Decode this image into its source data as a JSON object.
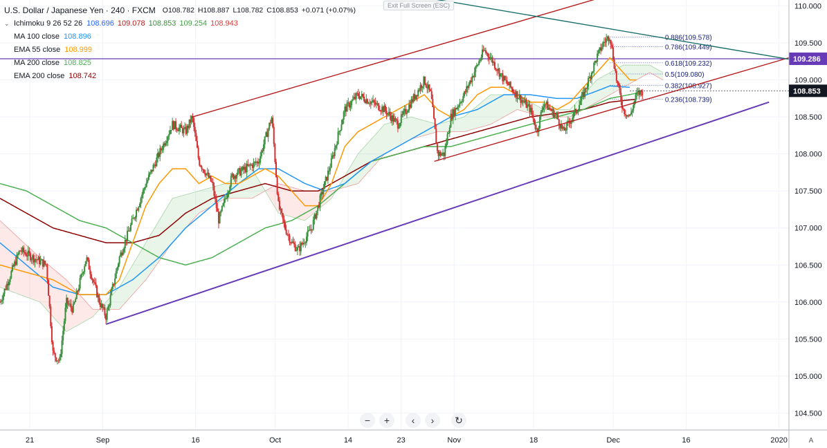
{
  "header": {
    "title": "U.S. Dollar / Japanese Yen · 240 · FXCM",
    "ohlc": {
      "open": "O108.782",
      "high": "H108.887",
      "low": "L108.782",
      "close": "C108.853",
      "change": "+0.071 (+0.07%)"
    },
    "exit_fullscreen": "Exit Full Screen (ESC)"
  },
  "indicators": [
    {
      "label": "Ichimoku 9 26 52 26",
      "values": [
        {
          "v": "108.696",
          "color": "#2962ff"
        },
        {
          "v": "109.078",
          "color": "#b71c1c"
        },
        {
          "v": "108.853",
          "color": "#388e3c"
        },
        {
          "v": "109.254",
          "color": "#43a047"
        },
        {
          "v": "108.943",
          "color": "#e53935"
        }
      ]
    },
    {
      "label": "MA 100 close",
      "values": [
        {
          "v": "108.896",
          "color": "#2196f3"
        }
      ]
    },
    {
      "label": "EMA 55 close",
      "values": [
        {
          "v": "108.999",
          "color": "#ff9800"
        }
      ]
    },
    {
      "label": "MA 200 close",
      "values": [
        {
          "v": "108.825",
          "color": "#4caf50"
        }
      ]
    },
    {
      "label": "EMA 200 close",
      "values": [
        {
          "v": "108.742",
          "color": "#8b0000"
        }
      ]
    }
  ],
  "toolbar": [
    "−",
    "+",
    "‹",
    "›",
    "↻"
  ],
  "scale_mode": "A",
  "chart_data": {
    "type": "candlestick",
    "symbol": "USDJPY",
    "timeframe": "240",
    "y_ticks": [
      "110.000",
      "109.500",
      "109.000",
      "108.500",
      "108.000",
      "107.500",
      "107.000",
      "106.500",
      "106.000",
      "105.500",
      "105.000",
      "104.500"
    ],
    "x_ticks": [
      {
        "label": "21",
        "t": 0.5
      },
      {
        "label": "Sep",
        "t": 11.5
      },
      {
        "label": "16",
        "t": 25.5
      },
      {
        "label": "Oct",
        "t": 37.5
      },
      {
        "label": "14",
        "t": 48.5
      },
      {
        "label": "23",
        "t": 56.5
      },
      {
        "label": "Nov",
        "t": 64.5
      },
      {
        "label": "18",
        "t": 76.5
      },
      {
        "label": "Dec",
        "t": 88.5
      },
      {
        "label": "16",
        "t": 99.5
      },
      {
        "label": "2020",
        "t": 113.5
      }
    ],
    "y_range": [
      104.27,
      110.08
    ],
    "x_range": [
      -4,
      115
    ],
    "grid": true,
    "last_price": {
      "value": 108.853,
      "label": "108.853",
      "color": "#131722"
    },
    "horizontal_line": {
      "value": 109.286,
      "label": "109.286",
      "color": "#673ab7"
    },
    "fibonacci": [
      {
        "label": "0.886(109.578)",
        "value": 109.578
      },
      {
        "label": "0.786(109.449)",
        "value": 109.449
      },
      {
        "label": "0.618(109.232)",
        "value": 109.232
      },
      {
        "label": "0.5(109.080)",
        "value": 109.08
      },
      {
        "label": "0.382(108.927)",
        "value": 108.927
      },
      {
        "label": "0.236(108.739)",
        "value": 108.739
      }
    ],
    "trendlines": [
      {
        "name": "channel-upper",
        "color": "#b71c1c",
        "from": [
          25,
          108.5
        ],
        "to": [
          90,
          110.2
        ]
      },
      {
        "name": "channel-lower",
        "color": "#b71c1c",
        "from": [
          61.5,
          107.9
        ],
        "to": [
          115,
          109.3
        ]
      },
      {
        "name": "support",
        "color": "#673ab7",
        "from": [
          12,
          105.7
        ],
        "to": [
          112,
          108.7
        ]
      },
      {
        "name": "resistance",
        "color": "#1b6f6a",
        "from": [
          61,
          110.1
        ],
        "to": [
          115,
          109.28
        ]
      }
    ],
    "series": [
      {
        "name": "candles",
        "color_up": "#388e3c",
        "color_down": "#d32f2f",
        "anchors": [
          [
            -4,
            106.0
          ],
          [
            -1,
            106.7
          ],
          [
            3,
            106.5
          ],
          [
            4,
            105.3
          ],
          [
            5,
            105.2
          ],
          [
            6,
            106.0
          ],
          [
            7,
            105.9
          ],
          [
            9,
            106.6
          ],
          [
            11,
            106.0
          ],
          [
            12,
            105.8
          ],
          [
            14,
            106.6
          ],
          [
            16,
            107.1
          ],
          [
            18,
            107.6
          ],
          [
            20,
            108.0
          ],
          [
            22,
            108.4
          ],
          [
            24,
            108.3
          ],
          [
            25,
            108.5
          ],
          [
            26,
            107.9
          ],
          [
            28,
            107.6
          ],
          [
            29,
            107.1
          ],
          [
            31,
            107.7
          ],
          [
            33,
            107.8
          ],
          [
            35,
            107.9
          ],
          [
            36,
            108.2
          ],
          [
            37,
            108.5
          ],
          [
            38,
            107.3
          ],
          [
            39,
            107.0
          ],
          [
            40,
            106.8
          ],
          [
            41,
            106.7
          ],
          [
            43,
            107.0
          ],
          [
            44,
            107.3
          ],
          [
            46,
            107.9
          ],
          [
            48,
            108.6
          ],
          [
            50,
            108.8
          ],
          [
            52,
            108.7
          ],
          [
            54,
            108.6
          ],
          [
            56,
            108.4
          ],
          [
            58,
            108.7
          ],
          [
            60,
            109.0
          ],
          [
            61,
            108.8
          ],
          [
            62,
            108.0
          ],
          [
            63,
            108.0
          ],
          [
            64,
            108.5
          ],
          [
            66,
            108.8
          ],
          [
            68,
            109.2
          ],
          [
            69,
            109.4
          ],
          [
            70,
            109.3
          ],
          [
            72,
            109.0
          ],
          [
            74,
            108.8
          ],
          [
            76,
            108.6
          ],
          [
            77,
            108.3
          ],
          [
            78,
            108.7
          ],
          [
            80,
            108.5
          ],
          [
            81,
            108.3
          ],
          [
            83,
            108.6
          ],
          [
            84,
            108.8
          ],
          [
            86,
            109.3
          ],
          [
            87,
            109.5
          ],
          [
            88,
            109.6
          ],
          [
            89,
            109.0
          ],
          [
            90,
            108.6
          ],
          [
            91,
            108.5
          ],
          [
            92,
            108.8
          ],
          [
            93,
            108.85
          ]
        ]
      },
      {
        "name": "EMA 55",
        "color": "#ff9800",
        "anchors": [
          [
            -4,
            106.5
          ],
          [
            0,
            106.4
          ],
          [
            4,
            106.3
          ],
          [
            8,
            106.1
          ],
          [
            12,
            106.1
          ],
          [
            14,
            106.3
          ],
          [
            16,
            106.8
          ],
          [
            18,
            107.3
          ],
          [
            20,
            107.6
          ],
          [
            22,
            107.8
          ],
          [
            24,
            107.8
          ],
          [
            26,
            107.6
          ],
          [
            28,
            107.7
          ],
          [
            30,
            107.6
          ],
          [
            32,
            107.6
          ],
          [
            34,
            107.7
          ],
          [
            36,
            107.8
          ],
          [
            38,
            107.7
          ],
          [
            40,
            107.5
          ],
          [
            42,
            107.3
          ],
          [
            44,
            107.3
          ],
          [
            46,
            107.6
          ],
          [
            48,
            108.1
          ],
          [
            50,
            108.3
          ],
          [
            52,
            108.4
          ],
          [
            54,
            108.5
          ],
          [
            56,
            108.6
          ],
          [
            58,
            108.7
          ],
          [
            60,
            108.8
          ],
          [
            62,
            108.6
          ],
          [
            64,
            108.5
          ],
          [
            66,
            108.6
          ],
          [
            68,
            108.8
          ],
          [
            70,
            108.9
          ],
          [
            72,
            108.9
          ],
          [
            74,
            108.8
          ],
          [
            76,
            108.7
          ],
          [
            78,
            108.7
          ],
          [
            80,
            108.6
          ],
          [
            82,
            108.7
          ],
          [
            84,
            108.9
          ],
          [
            86,
            109.1
          ],
          [
            88,
            109.3
          ],
          [
            89,
            109.2
          ],
          [
            91,
            109.0
          ],
          [
            92,
            109.0
          ]
        ]
      },
      {
        "name": "MA 100",
        "color": "#2196f3",
        "anchors": [
          [
            -4,
            106.8
          ],
          [
            0,
            106.5
          ],
          [
            4,
            106.2
          ],
          [
            8,
            106.1
          ],
          [
            12,
            106.1
          ],
          [
            16,
            106.3
          ],
          [
            20,
            106.6
          ],
          [
            24,
            107.0
          ],
          [
            28,
            107.3
          ],
          [
            32,
            107.6
          ],
          [
            35,
            107.8
          ],
          [
            38,
            107.8
          ],
          [
            42,
            107.6
          ],
          [
            45,
            107.5
          ],
          [
            48,
            107.6
          ],
          [
            52,
            107.9
          ],
          [
            56,
            108.1
          ],
          [
            60,
            108.3
          ],
          [
            64,
            108.5
          ],
          [
            68,
            108.6
          ],
          [
            72,
            108.8
          ],
          [
            76,
            108.8
          ],
          [
            80,
            108.75
          ],
          [
            83,
            108.75
          ],
          [
            86,
            108.85
          ],
          [
            88,
            108.92
          ],
          [
            91,
            108.9
          ]
        ]
      },
      {
        "name": "MA 200",
        "color": "#4caf50",
        "anchors": [
          [
            -4,
            107.6
          ],
          [
            0,
            107.5
          ],
          [
            4,
            107.3
          ],
          [
            8,
            107.1
          ],
          [
            12,
            107.0
          ],
          [
            16,
            106.8
          ],
          [
            20,
            106.6
          ],
          [
            24,
            106.5
          ],
          [
            28,
            106.6
          ],
          [
            32,
            106.8
          ],
          [
            36,
            107.0
          ],
          [
            40,
            107.1
          ],
          [
            44,
            107.3
          ],
          [
            48,
            107.6
          ],
          [
            52,
            107.9
          ],
          [
            56,
            108.0
          ],
          [
            60,
            108.1
          ],
          [
            64,
            108.1
          ],
          [
            68,
            108.2
          ],
          [
            72,
            108.3
          ],
          [
            76,
            108.4
          ],
          [
            80,
            108.5
          ],
          [
            84,
            108.6
          ],
          [
            88,
            108.75
          ],
          [
            92,
            108.82
          ]
        ]
      },
      {
        "name": "EMA 200",
        "color": "#8b0000",
        "anchors": [
          [
            -4,
            107.4
          ],
          [
            0,
            107.2
          ],
          [
            4,
            107.0
          ],
          [
            8,
            106.9
          ],
          [
            12,
            106.8
          ],
          [
            16,
            106.8
          ],
          [
            20,
            106.9
          ],
          [
            24,
            107.2
          ],
          [
            28,
            107.4
          ],
          [
            32,
            107.5
          ],
          [
            36,
            107.6
          ],
          [
            40,
            107.5
          ],
          [
            44,
            107.5
          ],
          [
            48,
            107.7
          ],
          [
            52,
            107.9
          ],
          [
            56,
            108.0
          ],
          [
            60,
            108.1
          ],
          [
            64,
            108.2
          ],
          [
            68,
            108.3
          ],
          [
            72,
            108.4
          ],
          [
            76,
            108.5
          ],
          [
            80,
            108.55
          ],
          [
            84,
            108.6
          ],
          [
            88,
            108.7
          ],
          [
            92,
            108.74
          ]
        ]
      },
      {
        "name": "Ichimoku Span A",
        "color": "#a5d6a7",
        "anchors": [
          [
            -4,
            106.2
          ],
          [
            2,
            106.0
          ],
          [
            6,
            105.6
          ],
          [
            10,
            105.8
          ],
          [
            14,
            106.2
          ],
          [
            18,
            106.8
          ],
          [
            22,
            107.4
          ],
          [
            26,
            107.5
          ],
          [
            30,
            107.6
          ],
          [
            34,
            107.8
          ],
          [
            38,
            107.2
          ],
          [
            42,
            107.1
          ],
          [
            46,
            107.4
          ],
          [
            50,
            108.0
          ],
          [
            54,
            108.4
          ],
          [
            58,
            108.5
          ],
          [
            62,
            108.4
          ],
          [
            66,
            108.5
          ],
          [
            70,
            108.8
          ],
          [
            74,
            108.8
          ],
          [
            78,
            108.6
          ],
          [
            82,
            108.6
          ],
          [
            86,
            109.0
          ],
          [
            90,
            109.2
          ],
          [
            94,
            109.2
          ],
          [
            96,
            109.1
          ]
        ]
      },
      {
        "name": "Ichimoku Span B",
        "color": "#ef9a9a",
        "anchors": [
          [
            -4,
            107.1
          ],
          [
            2,
            106.6
          ],
          [
            6,
            106.3
          ],
          [
            10,
            105.9
          ],
          [
            14,
            105.9
          ],
          [
            18,
            106.3
          ],
          [
            22,
            106.8
          ],
          [
            26,
            107.2
          ],
          [
            30,
            107.4
          ],
          [
            34,
            107.4
          ],
          [
            38,
            107.6
          ],
          [
            42,
            107.5
          ],
          [
            46,
            107.5
          ],
          [
            50,
            107.6
          ],
          [
            54,
            108.0
          ],
          [
            58,
            108.2
          ],
          [
            62,
            108.3
          ],
          [
            66,
            108.3
          ],
          [
            70,
            108.4
          ],
          [
            74,
            108.6
          ],
          [
            78,
            108.5
          ],
          [
            82,
            108.5
          ],
          [
            86,
            108.7
          ],
          [
            90,
            108.9
          ],
          [
            94,
            109.1
          ],
          [
            96,
            109.0
          ]
        ]
      }
    ]
  }
}
